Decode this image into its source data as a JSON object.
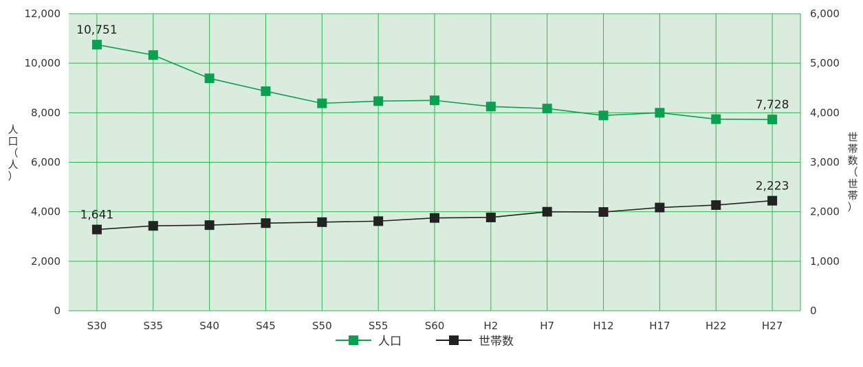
{
  "chart_data": {
    "type": "line",
    "categories": [
      "S30",
      "S35",
      "S40",
      "S45",
      "S50",
      "S55",
      "S60",
      "H2",
      "H7",
      "H12",
      "H17",
      "H22",
      "H27"
    ],
    "series": [
      {
        "name": "人口",
        "axis": "left",
        "color": "#0aa050",
        "values": [
          10751,
          10330,
          9390,
          8870,
          8380,
          8470,
          8500,
          8250,
          8170,
          7890,
          8000,
          7740,
          7728
        ]
      },
      {
        "name": "世帯数",
        "axis": "right",
        "color": "#222222",
        "values": [
          1641,
          1715,
          1730,
          1770,
          1790,
          1810,
          1875,
          1885,
          2000,
          1995,
          2085,
          2135,
          2223
        ]
      }
    ],
    "data_labels": [
      {
        "series": 0,
        "index": 0,
        "text": "10,751"
      },
      {
        "series": 0,
        "index": 12,
        "text": "7,728"
      },
      {
        "series": 1,
        "index": 0,
        "text": "1,641"
      },
      {
        "series": 1,
        "index": 12,
        "text": "2,223"
      }
    ],
    "y_left": {
      "label": "人口（人）",
      "ylim": [
        0,
        12000
      ],
      "ticks": [
        "0",
        "2,000",
        "4,000",
        "6,000",
        "8,000",
        "10,000",
        "12,000"
      ]
    },
    "y_right": {
      "label": "世帯数（世帯）",
      "ylim": [
        0,
        6000
      ],
      "ticks": [
        "0",
        "1,000",
        "2,000",
        "3,000",
        "4,000",
        "5,000",
        "6,000"
      ]
    },
    "grid": true,
    "plot_background": "#d9ecdd",
    "grid_color": "#2db84d",
    "legend_position": "bottom-center"
  }
}
